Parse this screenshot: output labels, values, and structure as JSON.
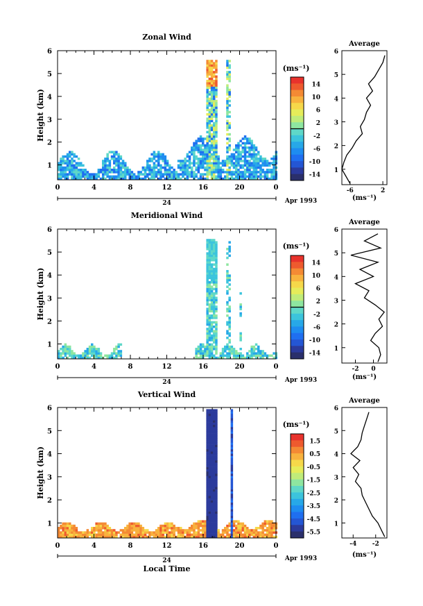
{
  "chart_data": [
    {
      "type": "heatmap",
      "title": "Zonal Wind",
      "ylabel": "Height (km)",
      "xlim": [
        0,
        24
      ],
      "ylim": [
        0.35,
        6
      ],
      "x_ticks": [
        "0",
        "4",
        "8",
        "12",
        "16",
        "20",
        "0"
      ],
      "y_ticks": [
        "1",
        "2",
        "3",
        "4",
        "5",
        "6"
      ],
      "date_center": "24",
      "date_label": "Apr 1993",
      "colorbar": {
        "unit": "(ms⁻¹)",
        "ticks": [
          "14",
          "10",
          "6",
          "2",
          "-2",
          "-6",
          "-10",
          "-14"
        ],
        "min": -16,
        "max": 16,
        "zero_line": 0
      },
      "average_profile": {
        "title": "Average",
        "xlabel": "(ms⁻¹)",
        "x_ticks": [
          "-6",
          "2"
        ],
        "xlim": [
          -8,
          3
        ],
        "heights": [
          0.4,
          0.7,
          1.0,
          1.3,
          1.6,
          1.9,
          2.2,
          2.5,
          2.8,
          3.1,
          3.4,
          3.7,
          4.0,
          4.3,
          4.6,
          4.9,
          5.2,
          5.5,
          5.8
        ],
        "values": [
          -6,
          -7,
          -8,
          -7.5,
          -6.8,
          -5.5,
          -4.5,
          -3,
          -3.5,
          -2.5,
          -2,
          -1,
          -2,
          -0.5,
          -1.5,
          0,
          1,
          2,
          2.5
        ]
      }
    },
    {
      "type": "heatmap",
      "title": "Meridional Wind",
      "ylabel": "Height (km)",
      "xlim": [
        0,
        24
      ],
      "ylim": [
        0.35,
        6
      ],
      "x_ticks": [
        "0",
        "4",
        "8",
        "12",
        "16",
        "20",
        "0"
      ],
      "y_ticks": [
        "1",
        "2",
        "3",
        "4",
        "5",
        "6"
      ],
      "date_center": "24",
      "date_label": "Apr 1993",
      "colorbar": {
        "unit": "(ms⁻¹)",
        "ticks": [
          "14",
          "10",
          "6",
          "2",
          "-2",
          "-6",
          "-10",
          "-14"
        ],
        "min": -16,
        "max": 16,
        "zero_line": 0
      },
      "average_profile": {
        "title": "Average",
        "xlabel": "(ms⁻¹)",
        "x_ticks": [
          "-2",
          "0"
        ],
        "xlim": [
          -3.5,
          1.5
        ],
        "heights": [
          0.4,
          0.7,
          1.0,
          1.3,
          1.6,
          1.9,
          2.2,
          2.5,
          2.8,
          3.1,
          3.4,
          3.7,
          4.0,
          4.3,
          4.6,
          4.9,
          5.2,
          5.5,
          5.8
        ],
        "values": [
          0.5,
          0.8,
          0.6,
          -0.3,
          0.2,
          1.0,
          0.6,
          1.2,
          0.2,
          -1.0,
          -0.5,
          -2.0,
          0.0,
          -1.5,
          0.5,
          -2.5,
          0.8,
          -1.0,
          0.5
        ]
      }
    },
    {
      "type": "heatmap",
      "title": "Vertical Wind",
      "xlabel": "Local Time",
      "ylabel": "Height (km)",
      "xlim": [
        0,
        24
      ],
      "ylim": [
        0.35,
        6
      ],
      "x_ticks": [
        "0",
        "4",
        "8",
        "12",
        "16",
        "20",
        "0"
      ],
      "y_ticks": [
        "1",
        "2",
        "3",
        "4",
        "5",
        "6"
      ],
      "date_center": "24",
      "date_label": "Apr 1993",
      "colorbar": {
        "unit": "(ms⁻¹)",
        "ticks": [
          "1.5",
          "0.5",
          "-0.5",
          "-1.5",
          "-2.5",
          "-3.5",
          "-4.5",
          "-5.5"
        ],
        "min": -6.5,
        "max": 2.0
      },
      "average_profile": {
        "title": "Average",
        "xlabel": "(ms⁻¹)",
        "x_ticks": [
          "-4",
          "-2"
        ],
        "xlim": [
          -5,
          -1
        ],
        "heights": [
          0.4,
          0.7,
          1.0,
          1.3,
          1.6,
          1.9,
          2.2,
          2.5,
          2.8,
          3.1,
          3.4,
          3.7,
          4.0,
          4.3,
          4.6,
          4.9,
          5.2,
          5.5,
          5.8
        ],
        "values": [
          -1.2,
          -1.5,
          -1.8,
          -2.3,
          -2.6,
          -2.9,
          -3.2,
          -3.3,
          -3.8,
          -3.5,
          -4.0,
          -3.4,
          -4.2,
          -3.6,
          -3.3,
          -3.2,
          -3.0,
          -2.8,
          -2.6
        ]
      }
    }
  ]
}
